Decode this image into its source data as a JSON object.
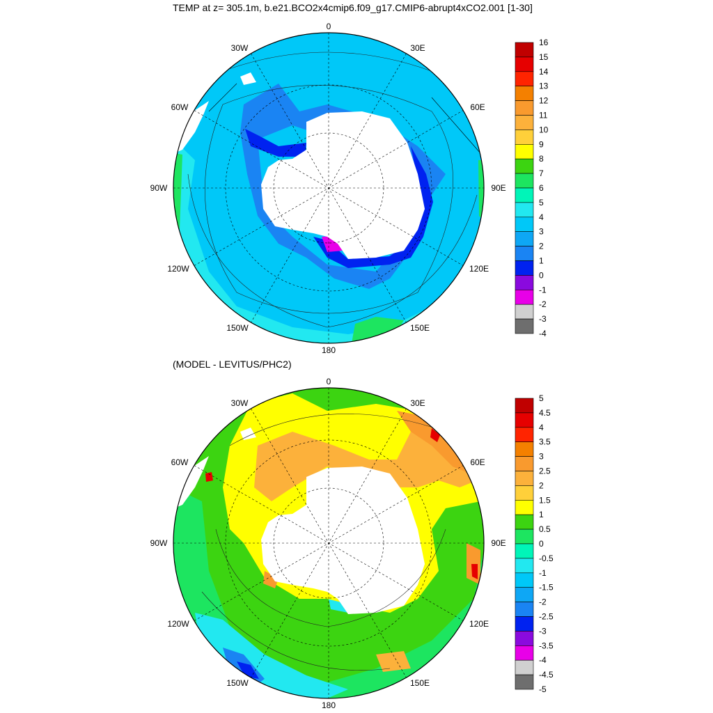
{
  "top_panel": {
    "title": "TEMP at z= 305.1m, b.e21.BCO2x4cmip6.f09_g17.CMIP6-abrupt4xCO2.001 [1-30]",
    "longitude_labels": {
      "lon_0": "0",
      "lon_30e": "30E",
      "lon_60e": "60E",
      "lon_90e": "90E",
      "lon_120e": "120E",
      "lon_150e": "150E",
      "lon_180": "180",
      "lon_150w": "150W",
      "lon_120w": "120W",
      "lon_90w": "90W",
      "lon_60w": "60W",
      "lon_30w": "30W"
    },
    "colorbar": {
      "labels": [
        "16",
        "15",
        "14",
        "13",
        "12",
        "11",
        "10",
        "9",
        "8",
        "7",
        "6",
        "5",
        "4",
        "3",
        "2",
        "1",
        "0",
        "-1",
        "-2",
        "-3",
        "-4"
      ],
      "colors": [
        "#C00000",
        "#E60000",
        "#FF2400",
        "#F48000",
        "#F99A2E",
        "#FCB13B",
        "#FFD03A",
        "#FFFF00",
        "#3CD411",
        "#1DE560",
        "#00F5B8",
        "#22E8F0",
        "#00C8F8",
        "#0EA7F5",
        "#1A84F3",
        "#0022F0",
        "#8A0ADE",
        "#E800E8",
        "#D0D0D0",
        "#6E6E6E"
      ]
    },
    "map_colors": {
      "land": "#FFFFFF",
      "open_ocean": "#00C8F8",
      "inner_ring": "#1A84F3",
      "cold_shelf": "#0022F0",
      "weddell": "#E800E8",
      "north_warm": "#22E8F0",
      "northeast_green": "#1DE560"
    }
  },
  "bottom_panel": {
    "title": "(MODEL - LEVITUS/PHC2)",
    "longitude_labels": {
      "lon_0": "0",
      "lon_30e": "30E",
      "lon_60e": "60E",
      "lon_90e": "90E",
      "lon_120e": "120E",
      "lon_150e": "150E",
      "lon_180": "180",
      "lon_150w": "150W",
      "lon_120w": "120W",
      "lon_90w": "90W",
      "lon_60w": "60W",
      "lon_30w": "30W"
    },
    "colorbar": {
      "labels": [
        "5",
        "4.5",
        "4",
        "3.5",
        "3",
        "2.5",
        "2",
        "1.5",
        "1",
        "0.5",
        "0",
        "-0.5",
        "-1",
        "-1.5",
        "-2",
        "-2.5",
        "-3",
        "-3.5",
        "-4",
        "-4.5",
        "-5"
      ],
      "colors": [
        "#C00000",
        "#E60000",
        "#FF2400",
        "#F48000",
        "#F99A2E",
        "#FCB13B",
        "#FFD03A",
        "#FFFF00",
        "#3CD411",
        "#1DE560",
        "#00F5B8",
        "#22E8F0",
        "#00C8F8",
        "#0EA7F5",
        "#1A84F3",
        "#0022F0",
        "#8A0ADE",
        "#E800E8",
        "#D0D0D0",
        "#6E6E6E"
      ]
    },
    "map_colors": {
      "land": "#FFFFFF",
      "base_green": "#3CD411",
      "yellow_ring": "#FFFF00",
      "orange_patch": "#FCB13B",
      "warm_orange": "#F99A2E",
      "red_spot": "#E60000",
      "light_green": "#1DE560",
      "cyan_patch": "#22E8F0",
      "blue_patch": "#1A84F3",
      "dark_blue": "#0022F0"
    }
  }
}
